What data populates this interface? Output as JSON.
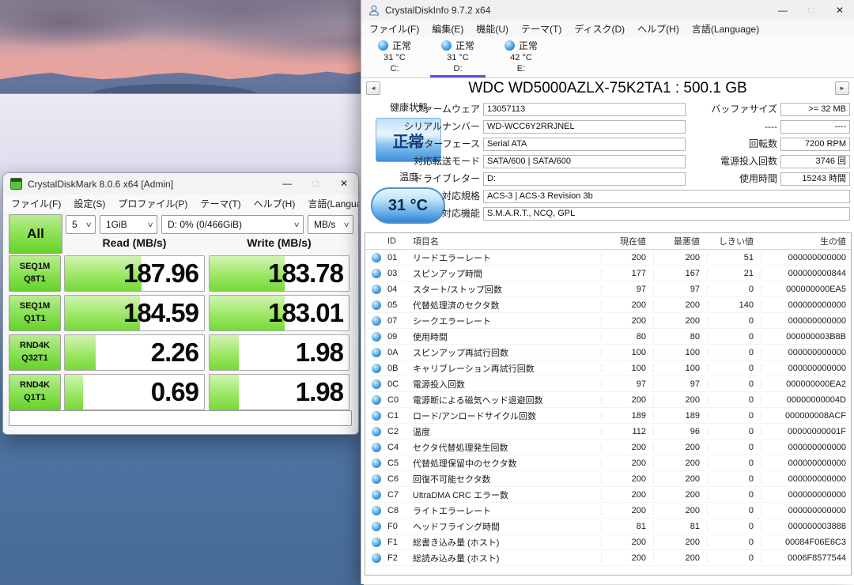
{
  "colors": {
    "green": "#66d22a",
    "green_light": "#b9ec90",
    "status_blue": "#3c8ede",
    "selected_tab": "#6750d8"
  },
  "window_controls": {
    "minimize": "—",
    "maximize": "□",
    "close": "✕"
  },
  "nav": {
    "prev": "◄",
    "next": "►"
  },
  "diskmark": {
    "title": "CrystalDiskMark 8.0.6 x64 [Admin]",
    "menu": [
      "ファイル(F)",
      "設定(S)",
      "プロファイル(P)",
      "テーマ(T)",
      "ヘルプ(H)",
      "言語(Language)"
    ],
    "all_button": "All",
    "combos": [
      {
        "value": "5"
      },
      {
        "value": "1GiB"
      },
      {
        "value": "D: 0% (0/466GiB)"
      },
      {
        "value": "MB/s"
      }
    ],
    "read_header": "Read (MB/s)",
    "write_header": "Write (MB/s)",
    "results": [
      {
        "test": "SEQ1M",
        "queue": "Q8T1",
        "read": "187.96",
        "write": "183.78",
        "read_fill": 55,
        "write_fill": 54
      },
      {
        "test": "SEQ1M",
        "queue": "Q1T1",
        "read": "184.59",
        "write": "183.01",
        "read_fill": 54,
        "write_fill": 54
      },
      {
        "test": "RND4K",
        "queue": "Q32T1",
        "read": "2.26",
        "write": "1.98",
        "read_fill": 22,
        "write_fill": 21
      },
      {
        "test": "RND4K",
        "queue": "Q1T1",
        "read": "0.69",
        "write": "1.98",
        "read_fill": 13,
        "write_fill": 21
      }
    ],
    "message_bar": ""
  },
  "diskinfo": {
    "title": "CrystalDiskInfo 9.7.2 x64",
    "menu": [
      "ファイル(F)",
      "編集(E)",
      "機能(U)",
      "テーマ(T)",
      "ディスク(D)",
      "ヘルプ(H)",
      "言語(Language)"
    ],
    "drive_tabs": [
      {
        "status": "正常",
        "temp": "31 °C",
        "letter": "C:",
        "selected": false
      },
      {
        "status": "正常",
        "temp": "31 °C",
        "letter": "D:",
        "selected": true
      },
      {
        "status": "正常",
        "temp": "42 °C",
        "letter": "E:",
        "selected": false
      }
    ],
    "drive_title": "WDC WD5000AZLX-75K2TA1 : 500.1 GB",
    "health": {
      "label": "健康状態",
      "value": "正常"
    },
    "temperature": {
      "label": "温度",
      "value": "31 °C"
    },
    "fields_mid": [
      {
        "label": "ファームウェア",
        "value": "13057113"
      },
      {
        "label": "シリアルナンバー",
        "value": "WD-WCC6Y2RRJNEL"
      },
      {
        "label": "インターフェース",
        "value": "Serial ATA"
      },
      {
        "label": "対応転送モード",
        "value": "SATA/600 | SATA/600"
      },
      {
        "label": "ドライブレター",
        "value": "D:"
      }
    ],
    "fields_wide": [
      {
        "label": "対応規格",
        "value": "ACS-3 | ACS-3 Revision 3b"
      },
      {
        "label": "対応機能",
        "value": "S.M.A.R.T., NCQ, GPL"
      }
    ],
    "fields_right": [
      {
        "label": "バッファサイズ",
        "value": ">= 32 MB"
      },
      {
        "label": "----",
        "value": "----"
      },
      {
        "label": "回転数",
        "value": "7200 RPM"
      },
      {
        "label": "電源投入回数",
        "value": "3746 回"
      },
      {
        "label": "使用時間",
        "value": "15243 時間"
      }
    ],
    "smart": {
      "headers": {
        "id": "ID",
        "name": "項目名",
        "current": "現在値",
        "worst": "最悪値",
        "threshold": "しきい値",
        "raw": "生の値"
      },
      "rows": [
        {
          "id": "01",
          "name": "リードエラーレート",
          "current": "200",
          "worst": "200",
          "threshold": "51",
          "raw": "000000000000"
        },
        {
          "id": "03",
          "name": "スピンアップ時間",
          "current": "177",
          "worst": "167",
          "threshold": "21",
          "raw": "000000000844"
        },
        {
          "id": "04",
          "name": "スタート/ストップ回数",
          "current": "97",
          "worst": "97",
          "threshold": "0",
          "raw": "000000000EA5"
        },
        {
          "id": "05",
          "name": "代替処理済のセクタ数",
          "current": "200",
          "worst": "200",
          "threshold": "140",
          "raw": "000000000000"
        },
        {
          "id": "07",
          "name": "シークエラーレート",
          "current": "200",
          "worst": "200",
          "threshold": "0",
          "raw": "000000000000"
        },
        {
          "id": "09",
          "name": "使用時間",
          "current": "80",
          "worst": "80",
          "threshold": "0",
          "raw": "000000003B8B"
        },
        {
          "id": "0A",
          "name": "スピンアップ再試行回数",
          "current": "100",
          "worst": "100",
          "threshold": "0",
          "raw": "000000000000"
        },
        {
          "id": "0B",
          "name": "キャリブレーション再試行回数",
          "current": "100",
          "worst": "100",
          "threshold": "0",
          "raw": "000000000000"
        },
        {
          "id": "0C",
          "name": "電源投入回数",
          "current": "97",
          "worst": "97",
          "threshold": "0",
          "raw": "000000000EA2"
        },
        {
          "id": "C0",
          "name": "電源断による磁気ヘッド退避回数",
          "current": "200",
          "worst": "200",
          "threshold": "0",
          "raw": "00000000004D"
        },
        {
          "id": "C1",
          "name": "ロード/アンロードサイクル回数",
          "current": "189",
          "worst": "189",
          "threshold": "0",
          "raw": "000000008ACF"
        },
        {
          "id": "C2",
          "name": "温度",
          "current": "112",
          "worst": "96",
          "threshold": "0",
          "raw": "00000000001F"
        },
        {
          "id": "C4",
          "name": "セクタ代替処理発生回数",
          "current": "200",
          "worst": "200",
          "threshold": "0",
          "raw": "000000000000"
        },
        {
          "id": "C5",
          "name": "代替処理保留中のセクタ数",
          "current": "200",
          "worst": "200",
          "threshold": "0",
          "raw": "000000000000"
        },
        {
          "id": "C6",
          "name": "回復不可能セクタ数",
          "current": "200",
          "worst": "200",
          "threshold": "0",
          "raw": "000000000000"
        },
        {
          "id": "C7",
          "name": "UltraDMA CRC エラー数",
          "current": "200",
          "worst": "200",
          "threshold": "0",
          "raw": "000000000000"
        },
        {
          "id": "C8",
          "name": "ライトエラーレート",
          "current": "200",
          "worst": "200",
          "threshold": "0",
          "raw": "000000000000"
        },
        {
          "id": "F0",
          "name": "ヘッドフライング時間",
          "current": "81",
          "worst": "81",
          "threshold": "0",
          "raw": "000000003888"
        },
        {
          "id": "F1",
          "name": "総書き込み量 (ホスト)",
          "current": "200",
          "worst": "200",
          "threshold": "0",
          "raw": "00084F06E6C3"
        },
        {
          "id": "F2",
          "name": "総読み込み量 (ホスト)",
          "current": "200",
          "worst": "200",
          "threshold": "0",
          "raw": "0006F8577544"
        }
      ]
    }
  }
}
